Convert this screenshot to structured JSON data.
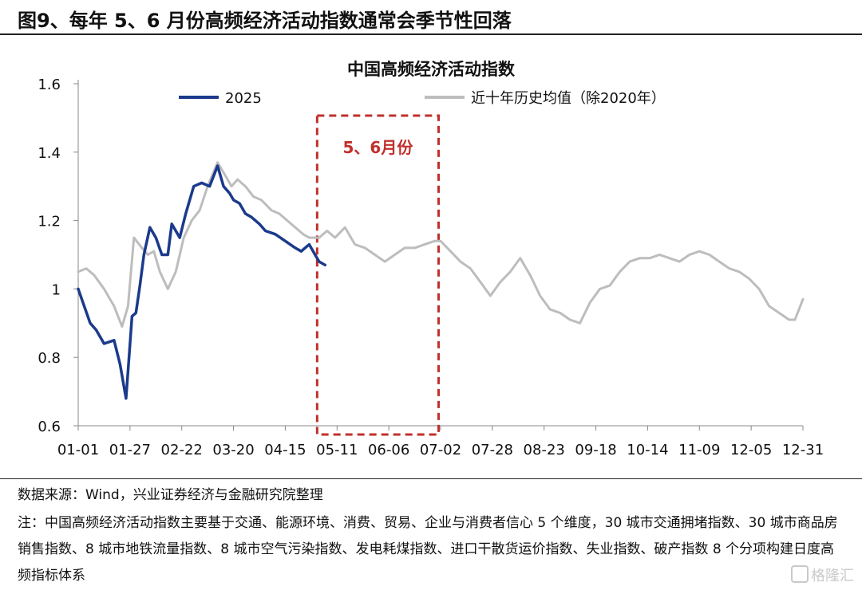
{
  "figure_title": "图9、每年 5、6 月份高频经济活动指数通常会季节性回落",
  "source": "数据来源：Wind，兴业证券经济与金融研究院整理",
  "note": "注：中国高频经济活动指数主要基于交通、能源环境、消费、贸易、企业与消费者信心 5 个维度，30 城市交通拥堵指数、30  城市商品房销售指数、8  城市地铁流量指数、8  城市空气污染指数、发电耗煤指数、进口干散货运价指数、失业指数、破产指数 8 个分项构建日度高频指标体系",
  "watermark": "格隆汇",
  "colors": {
    "series_2025": "#1b3a8c",
    "series_avg": "#bdbdbd",
    "highlight": "#c0302b"
  },
  "chart_data": {
    "type": "line",
    "title": "中国高频经济活动指数",
    "xlabel": "",
    "ylabel": "",
    "x_ticks": [
      "01-01",
      "01-27",
      "02-22",
      "03-20",
      "04-15",
      "05-11",
      "06-06",
      "07-02",
      "07-28",
      "08-23",
      "09-18",
      "10-14",
      "11-09",
      "12-05",
      "12-31"
    ],
    "y_ticks": [
      "0.6",
      "0.8",
      "1",
      "1.2",
      "1.4",
      "1.6"
    ],
    "ylim": [
      0.6,
      1.6
    ],
    "xlim_days": [
      0,
      364
    ],
    "legend": "top",
    "annotation": {
      "label": "5、6月份",
      "x_range": [
        "05-01",
        "07-01"
      ]
    },
    "series": [
      {
        "name": "2025",
        "x": [
          "01-01",
          "01-04",
          "01-07",
          "01-10",
          "01-14",
          "01-19",
          "01-22",
          "01-25",
          "01-28",
          "01-30",
          "02-01",
          "02-03",
          "02-06",
          "02-09",
          "02-12",
          "02-15",
          "02-17",
          "02-21",
          "02-24",
          "02-28",
          "03-04",
          "03-08",
          "03-12",
          "03-15",
          "03-18",
          "03-20",
          "03-23",
          "03-26",
          "03-29",
          "04-02",
          "04-05",
          "04-10",
          "04-15",
          "04-20",
          "04-23",
          "04-27",
          "04-30",
          "05-02",
          "05-05"
        ],
        "values": [
          1.0,
          0.95,
          0.9,
          0.88,
          0.84,
          0.85,
          0.78,
          0.68,
          0.92,
          0.93,
          1.01,
          1.1,
          1.18,
          1.15,
          1.1,
          1.1,
          1.19,
          1.15,
          1.22,
          1.3,
          1.31,
          1.3,
          1.36,
          1.3,
          1.28,
          1.26,
          1.25,
          1.22,
          1.21,
          1.19,
          1.17,
          1.16,
          1.14,
          1.12,
          1.11,
          1.13,
          1.1,
          1.08,
          1.07
        ]
      },
      {
        "name": "近十年历史均值（除2020年）",
        "x": [
          "01-01",
          "01-05",
          "01-09",
          "01-14",
          "01-19",
          "01-23",
          "01-26",
          "01-29",
          "02-02",
          "02-05",
          "02-08",
          "02-11",
          "02-15",
          "02-19",
          "02-23",
          "02-27",
          "03-03",
          "03-07",
          "03-12",
          "03-16",
          "03-19",
          "03-22",
          "03-26",
          "03-30",
          "04-03",
          "04-08",
          "04-12",
          "04-16",
          "04-20",
          "04-24",
          "04-27",
          "05-02",
          "05-06",
          "05-10",
          "05-15",
          "05-20",
          "05-25",
          "05-30",
          "06-04",
          "06-09",
          "06-14",
          "06-19",
          "06-24",
          "06-29",
          "07-02",
          "07-07",
          "07-12",
          "07-17",
          "07-22",
          "07-27",
          "08-01",
          "08-06",
          "08-11",
          "08-16",
          "08-21",
          "08-26",
          "08-31",
          "09-05",
          "09-10",
          "09-15",
          "09-20",
          "09-25",
          "09-30",
          "10-05",
          "10-10",
          "10-15",
          "10-20",
          "10-25",
          "10-30",
          "11-04",
          "11-09",
          "11-14",
          "11-19",
          "11-24",
          "11-29",
          "12-04",
          "12-09",
          "12-14",
          "12-19",
          "12-24",
          "12-27",
          "12-31"
        ],
        "values": [
          1.05,
          1.06,
          1.04,
          1.0,
          0.95,
          0.89,
          0.95,
          1.15,
          1.12,
          1.1,
          1.11,
          1.05,
          1.0,
          1.05,
          1.15,
          1.2,
          1.23,
          1.3,
          1.37,
          1.33,
          1.3,
          1.32,
          1.3,
          1.27,
          1.26,
          1.23,
          1.22,
          1.2,
          1.18,
          1.16,
          1.15,
          1.15,
          1.17,
          1.15,
          1.18,
          1.13,
          1.12,
          1.1,
          1.08,
          1.1,
          1.12,
          1.12,
          1.13,
          1.14,
          1.14,
          1.11,
          1.08,
          1.06,
          1.02,
          0.98,
          1.02,
          1.05,
          1.09,
          1.04,
          0.98,
          0.94,
          0.93,
          0.91,
          0.9,
          0.96,
          1.0,
          1.01,
          1.05,
          1.08,
          1.09,
          1.09,
          1.1,
          1.09,
          1.08,
          1.1,
          1.11,
          1.1,
          1.08,
          1.06,
          1.05,
          1.03,
          1.0,
          0.95,
          0.93,
          0.91,
          0.91,
          0.97
        ]
      }
    ]
  }
}
